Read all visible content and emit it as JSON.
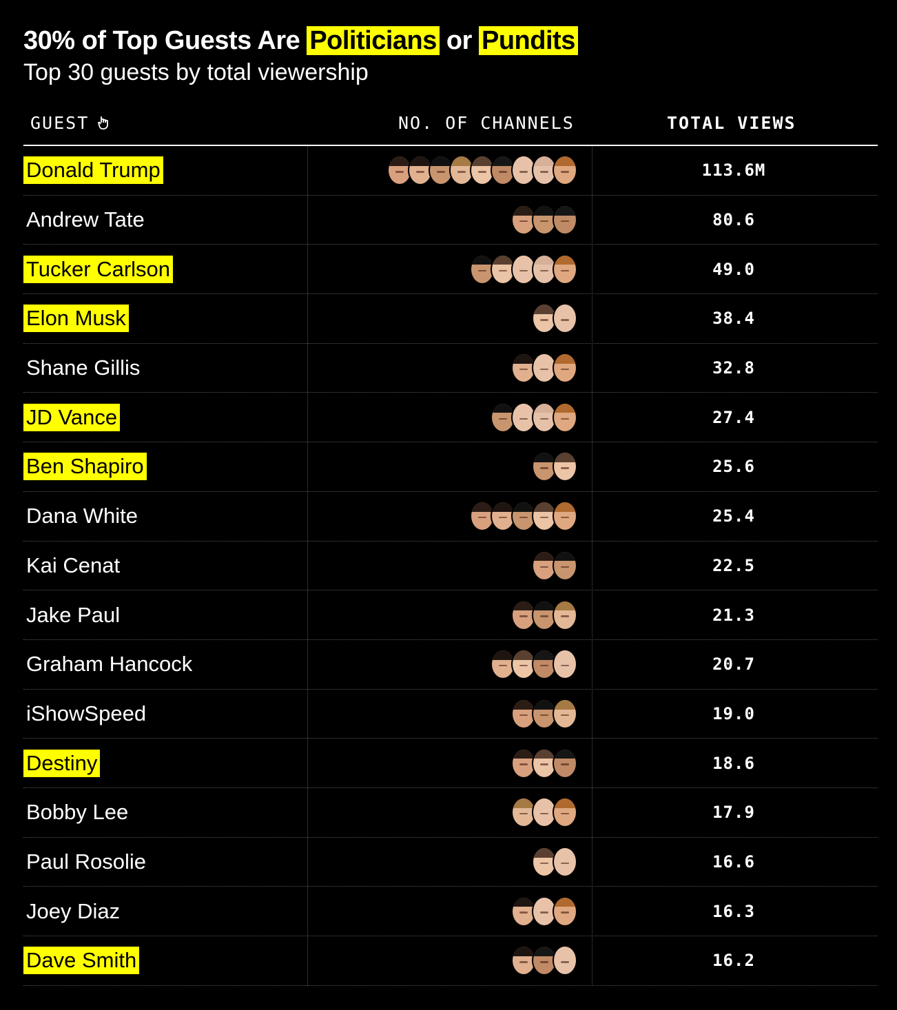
{
  "header": {
    "title_part1": "30% of Top Guests Are ",
    "title_highlight1": "Politicians",
    "title_part2": " or ",
    "title_highlight2": "Pundits",
    "subtitle": "Top 30 guests by total viewership"
  },
  "columns": {
    "guest": "GUEST",
    "channels": "NO. OF CHANNELS",
    "views": "TOTAL VIEWS"
  },
  "colors": {
    "highlight": "#ffff00",
    "background": "#000000",
    "text": "#ffffff"
  },
  "hosts": {
    "A": {
      "skin": "#d9a07e",
      "hair": "#2b1d15"
    },
    "B": {
      "skin": "#e1b08f",
      "hair": "#1e1410"
    },
    "C": {
      "skin": "#c8956e",
      "hair": "#111111"
    },
    "D": {
      "skin": "#e3b896",
      "hair": "#a57a44"
    },
    "E": {
      "skin": "#ecc4a6",
      "hair": "#5a4030"
    },
    "F": {
      "skin": "#c08a66",
      "hair": "#161616"
    },
    "G": {
      "skin": "#e8c2a8",
      "hair": "#e8c2a8"
    },
    "H": {
      "skin": "#e6c1a9",
      "hair": "#d7b09a"
    },
    "I": {
      "skin": "#e0a880",
      "hair": "#b0692e"
    }
  },
  "chart_data": {
    "type": "table",
    "title": "30% of Top Guests Are Politicians or Pundits",
    "subtitle": "Top 30 guests by total viewership",
    "rows": [
      {
        "guest": "Donald Trump",
        "pundit": true,
        "views": "113.6M",
        "channels": [
          "A",
          "B",
          "C",
          "D",
          "E",
          "F",
          "G",
          "H",
          "I"
        ]
      },
      {
        "guest": "Andrew Tate",
        "pundit": false,
        "views": "80.6",
        "channels": [
          "A",
          "C",
          "F"
        ]
      },
      {
        "guest": "Tucker Carlson",
        "pundit": true,
        "views": "49.0",
        "channels": [
          "C",
          "E",
          "G",
          "H",
          "I"
        ]
      },
      {
        "guest": "Elon Musk",
        "pundit": true,
        "views": "38.4",
        "channels": [
          "E",
          "G"
        ]
      },
      {
        "guest": "Shane Gillis",
        "pundit": false,
        "views": "32.8",
        "channels": [
          "B",
          "G",
          "I"
        ]
      },
      {
        "guest": "JD Vance",
        "pundit": true,
        "views": "27.4",
        "channels": [
          "C",
          "G",
          "H",
          "I"
        ]
      },
      {
        "guest": "Ben Shapiro",
        "pundit": true,
        "views": "25.6",
        "channels": [
          "C",
          "E"
        ]
      },
      {
        "guest": "Dana White",
        "pundit": false,
        "views": "25.4",
        "channels": [
          "A",
          "B",
          "C",
          "E",
          "I"
        ]
      },
      {
        "guest": "Kai Cenat",
        "pundit": false,
        "views": "22.5",
        "channels": [
          "A",
          "C"
        ]
      },
      {
        "guest": "Jake Paul",
        "pundit": false,
        "views": "21.3",
        "channels": [
          "A",
          "C",
          "D"
        ]
      },
      {
        "guest": "Graham Hancock",
        "pundit": false,
        "views": "20.7",
        "channels": [
          "B",
          "E",
          "F",
          "G"
        ]
      },
      {
        "guest": "iShowSpeed",
        "pundit": false,
        "views": "19.0",
        "channels": [
          "A",
          "C",
          "D"
        ]
      },
      {
        "guest": "Destiny",
        "pundit": true,
        "views": "18.6",
        "channels": [
          "A",
          "E",
          "F"
        ]
      },
      {
        "guest": "Bobby Lee",
        "pundit": false,
        "views": "17.9",
        "channels": [
          "D",
          "G",
          "I"
        ]
      },
      {
        "guest": "Paul Rosolie",
        "pundit": false,
        "views": "16.6",
        "channels": [
          "E",
          "G"
        ]
      },
      {
        "guest": "Joey Diaz",
        "pundit": false,
        "views": "16.3",
        "channels": [
          "B",
          "G",
          "I"
        ]
      },
      {
        "guest": "Dave Smith",
        "pundit": true,
        "views": "16.2",
        "channels": [
          "B",
          "F",
          "G"
        ]
      }
    ]
  }
}
